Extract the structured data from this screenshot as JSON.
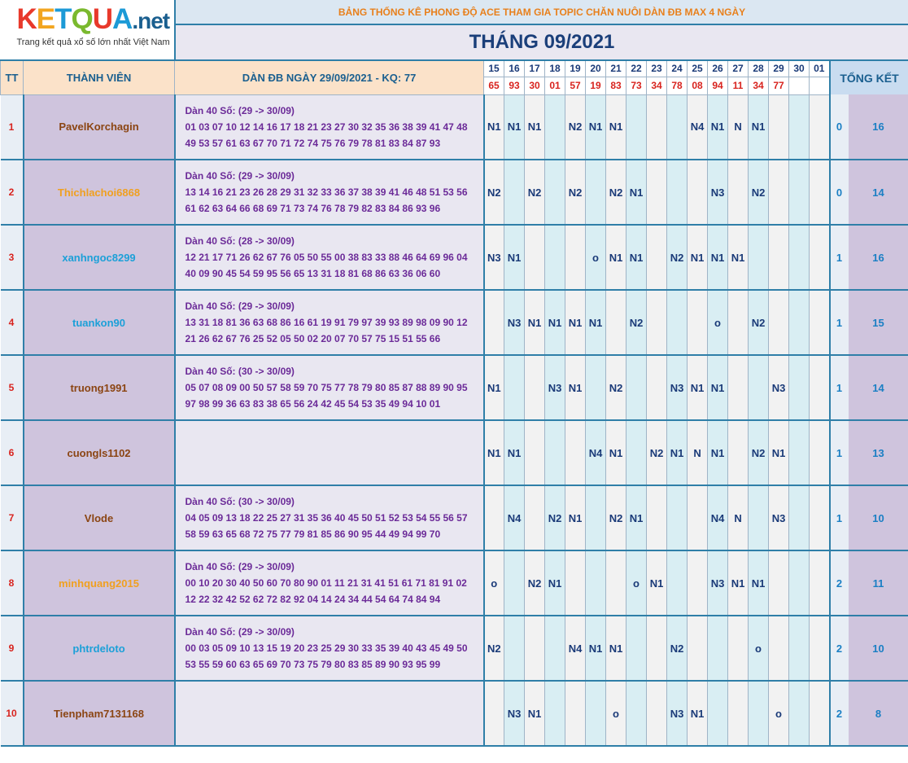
{
  "logo": {
    "letters": [
      "K",
      "E",
      "T",
      "Q",
      "U",
      "A"
    ],
    "suffix": ".net",
    "tagline": "Trang kết quả xổ số lớn nhất Việt Nam"
  },
  "title": "BẢNG THỐNG KÊ PHONG ĐỘ ACE THAM GIA TOPIC CHĂN NUÔI DÀN ĐB MAX 4 NGÀY",
  "month": "THÁNG 09/2021",
  "headers": {
    "tt": "TT",
    "member": "THÀNH VIÊN",
    "dan": "DÀN ĐB NGÀY 29/09/2021 - KQ: 77",
    "summary": "TỔNG KẾT"
  },
  "days": [
    "15",
    "16",
    "17",
    "18",
    "19",
    "20",
    "21",
    "22",
    "23",
    "24",
    "25",
    "26",
    "27",
    "28",
    "29",
    "30",
    "01"
  ],
  "results": [
    "65",
    "93",
    "30",
    "01",
    "57",
    "19",
    "83",
    "73",
    "34",
    "78",
    "08",
    "94",
    "11",
    "34",
    "77",
    "",
    ""
  ],
  "colors": {
    "header_border": "#2f7fa8",
    "orange_name": "#f0a020",
    "blue_name": "#1ca0d8",
    "brown_name": "#8b4513",
    "result_red": "#d8231e"
  },
  "rows": [
    {
      "tt": "1",
      "name": "PavelKorchagin",
      "name_color": "#8b4513",
      "dan_head": "Dàn 40 Số: (29 -> 30/09)",
      "dan_line1": "01 03 07 10 12 14 16 17 18 21 23 27 30 32 35 36 38 39 41 47 48",
      "dan_line2": "49 53 57 61 63 67 70 71 72 74 75 76 79 78 81 83 84 87 93",
      "cells": [
        "N1",
        "N1",
        "N1",
        "",
        "N2",
        "N1",
        "N1",
        "",
        "",
        "",
        "N4",
        "N1",
        "N",
        "N1",
        "",
        "",
        ""
      ],
      "wins": "0",
      "total": "16"
    },
    {
      "tt": "2",
      "name": "Thichlachoi6868",
      "name_color": "#f0a020",
      "dan_head": "Dàn 40 Số: (29 -> 30/09)",
      "dan_line1": "13 14 16 21 23 26 28 29 31 32 33 36 37 38 39 41 46 48 51 53 56",
      "dan_line2": "61 62 63 64 66 68 69 71 73 74 76 78 79 82 83 84 86 93 96",
      "cells": [
        "N2",
        "",
        "N2",
        "",
        "N2",
        "",
        "N2",
        "N1",
        "",
        "",
        "",
        "N3",
        "",
        "N2",
        "",
        "",
        ""
      ],
      "wins": "0",
      "total": "14"
    },
    {
      "tt": "3",
      "name": "xanhngoc8299",
      "name_color": "#1ca0d8",
      "dan_head": "Dàn 40 Số: (28 -> 30/09)",
      "dan_line1": "12 21 17 71 26 62 67 76 05 50 55 00 38 83 33 88 46 64 69 96 04",
      "dan_line2": "40 09 90 45 54 59 95 56 65 13 31 18 81 68 86 63 36 06 60",
      "cells": [
        "N3",
        "N1",
        "",
        "",
        "",
        "o",
        "N1",
        "N1",
        "",
        "N2",
        "N1",
        "N1",
        "N1",
        "",
        "",
        "",
        ""
      ],
      "wins": "1",
      "total": "16"
    },
    {
      "tt": "4",
      "name": "tuankon90",
      "name_color": "#1ca0d8",
      "dan_head": "Dàn 40 Số: (29 -> 30/09)",
      "dan_line1": "13 31 18 81 36 63 68 86 16 61 19 91 79 97 39 93 89 98 09 90 12",
      "dan_line2": "21 26 62 67 76 25 52 05 50 02 20 07 70 57 75 15 51 55 66",
      "cells": [
        "",
        "N3",
        "N1",
        "N1",
        "N1",
        "N1",
        "",
        "N2",
        "",
        "",
        "",
        "o",
        "",
        "N2",
        "",
        "",
        ""
      ],
      "wins": "1",
      "total": "15"
    },
    {
      "tt": "5",
      "name": "truong1991",
      "name_color": "#8b4513",
      "dan_head": "Dàn 40 Số: (30 -> 30/09)",
      "dan_line1": "05 07 08 09 00 50 57 58 59 70 75 77 78 79 80 85 87 88 89 90 95",
      "dan_line2": "97 98 99 36 63 83 38 65 56 24 42 45 54 53 35 49 94 10 01",
      "cells": [
        "N1",
        "",
        "",
        "N3",
        "N1",
        "",
        "N2",
        "",
        "",
        "N3",
        "N1",
        "N1",
        "",
        "",
        "N3",
        "",
        ""
      ],
      "wins": "1",
      "total": "14"
    },
    {
      "tt": "6",
      "name": "cuongls1102",
      "name_color": "#8b4513",
      "dan_head": "",
      "dan_line1": "",
      "dan_line2": "",
      "cells": [
        "N1",
        "N1",
        "",
        "",
        "",
        "N4",
        "N1",
        "",
        "N2",
        "N1",
        "N",
        "N1",
        "",
        "N2",
        "N1",
        "",
        ""
      ],
      "wins": "1",
      "total": "13"
    },
    {
      "tt": "7",
      "name": "Vlode",
      "name_color": "#8b4513",
      "dan_head": "Dàn 40 Số: (30 -> 30/09)",
      "dan_line1": "04 05 09 13 18 22 25 27 31 35 36 40 45 50 51 52 53 54 55 56 57",
      "dan_line2": "58 59 63 65 68 72 75 77 79 81 85 86 90 95 44 49 94 99 70",
      "cells": [
        "",
        "N4",
        "",
        "N2",
        "N1",
        "",
        "N2",
        "N1",
        "",
        "",
        "",
        "N4",
        "N",
        "",
        "N3",
        "",
        ""
      ],
      "wins": "1",
      "total": "10"
    },
    {
      "tt": "8",
      "name": "minhquang2015",
      "name_color": "#f0a020",
      "dan_head": "Dàn 40 Số: (29 -> 30/09)",
      "dan_line1": "00 10 20 30 40 50 60 70 80 90 01 11 21 31 41 51 61 71 81 91 02",
      "dan_line2": "12 22 32 42 52 62 72 82 92 04 14 24 34 44 54 64 74 84 94",
      "cells": [
        "o",
        "",
        "N2",
        "N1",
        "",
        "",
        "",
        "o",
        "N1",
        "",
        "",
        "N3",
        "N1",
        "N1",
        "",
        "",
        ""
      ],
      "wins": "2",
      "total": "11"
    },
    {
      "tt": "9",
      "name": "phtrdeloto",
      "name_color": "#1ca0d8",
      "dan_head": "Dàn 40 Số: (29 -> 30/09)",
      "dan_line1": "00 03 05 09 10 13 15 19 20 23 25 29 30 33 35 39 40 43 45 49 50",
      "dan_line2": "53 55 59 60 63 65 69 70 73 75 79 80 83 85 89 90 93 95 99",
      "cells": [
        "N2",
        "",
        "",
        "",
        "N4",
        "N1",
        "N1",
        "",
        "",
        "N2",
        "",
        "",
        "",
        "o",
        "",
        "",
        ""
      ],
      "wins": "2",
      "total": "10"
    },
    {
      "tt": "10",
      "name": "Tienpham7131168",
      "name_color": "#8b4513",
      "dan_head": "",
      "dan_line1": "",
      "dan_line2": "",
      "cells": [
        "",
        "N3",
        "N1",
        "",
        "",
        "",
        "o",
        "",
        "",
        "N3",
        "N1",
        "",
        "",
        "",
        "o",
        "",
        ""
      ],
      "wins": "2",
      "total": "8"
    }
  ]
}
